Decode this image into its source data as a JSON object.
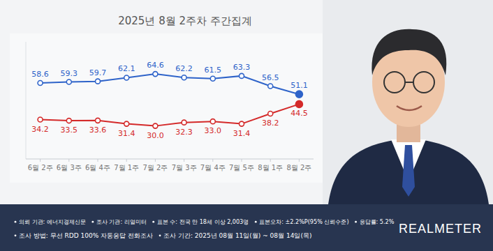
{
  "chart_data": {
    "type": "line",
    "title": "2025년 8월 2주차 주간집계",
    "categories": [
      "6월 2주",
      "6월 3주",
      "6월 4주",
      "7월 1주",
      "7월 2주",
      "7월 3주",
      "7월 4주",
      "7월 5주",
      "8월 1주",
      "8월 2주"
    ],
    "series": [
      {
        "color": "#2e63c9",
        "values": [
          58.6,
          59.3,
          59.7,
          62.1,
          64.6,
          62.2,
          61.5,
          63.3,
          56.5,
          51.1
        ]
      },
      {
        "color": "#d42a2a",
        "values": [
          34.2,
          33.5,
          33.6,
          31.4,
          30.0,
          32.3,
          33.0,
          31.4,
          38.2,
          44.5
        ],
        "value_labels": [
          "34.2",
          "33.5",
          "33.6",
          "31.4",
          "30.0",
          "32.3",
          "33.0",
          "31.4",
          "38.2",
          "44.5"
        ]
      }
    ],
    "ylim": [
      8,
      86
    ],
    "marker": "circle",
    "data_labels": true,
    "tick_labels": "x",
    "grid": false
  },
  "footer": {
    "lines": [
      [
        "의뢰 기관: 에너지경제신문",
        "조사 기관: 리얼미터",
        "표본 수: 전국 만 18세 이상 2,003명",
        "표본오차: ±2.2%P(95% 신뢰수준)",
        "응답률: 5.2%"
      ],
      [
        "조사 방법: 무선 RDD 100% 자동응답 전화조사",
        "조사 기간: 2025년 08월 11일(월) ~ 08월 14일(목)"
      ]
    ]
  },
  "logo": "REALMETER"
}
